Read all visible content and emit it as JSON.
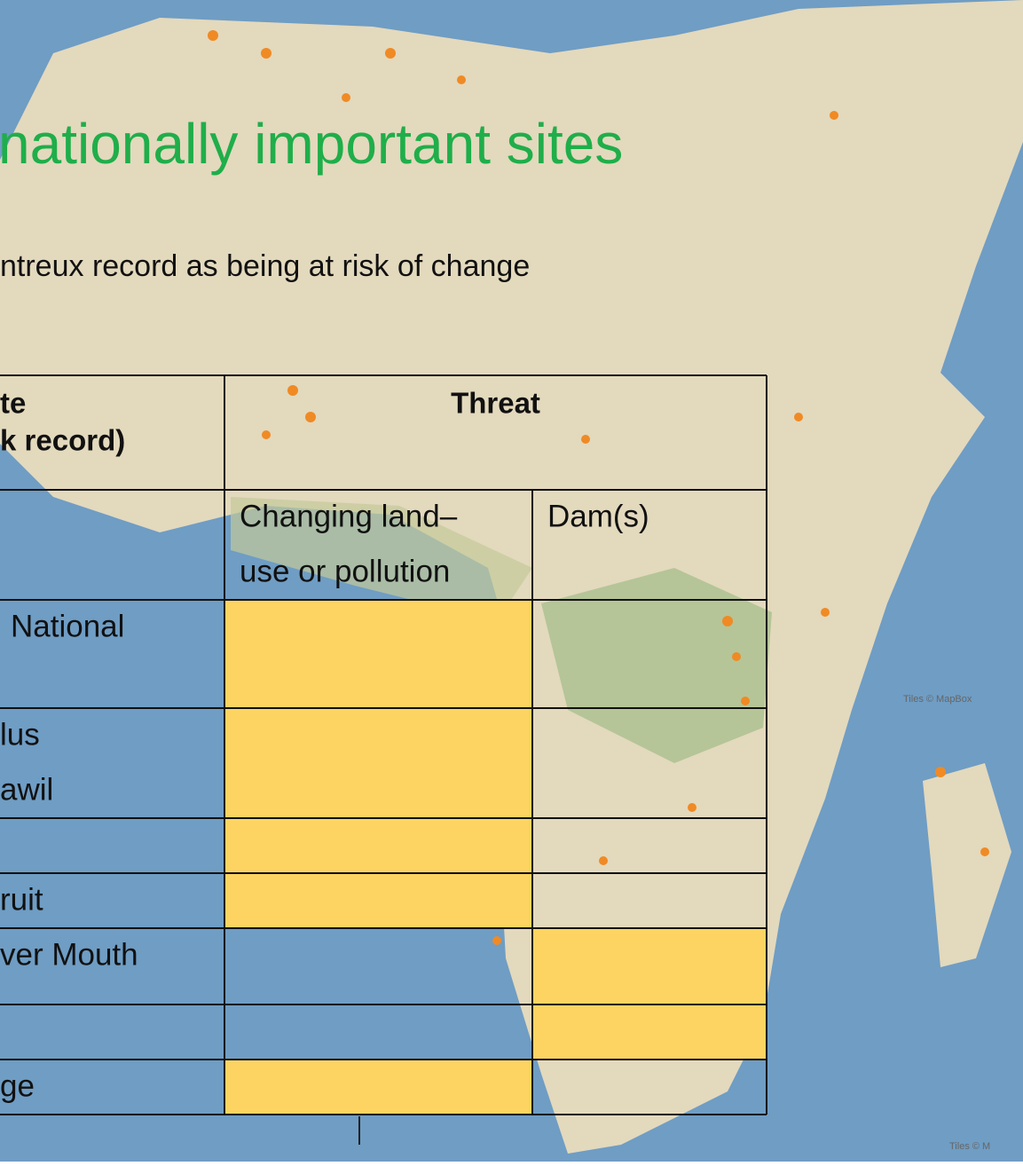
{
  "title": "nationally important sites",
  "subtitle": "ntreux record as being at risk of change",
  "table": {
    "header": {
      "site": [
        "te",
        "k record)"
      ],
      "threat": "Threat",
      "columns": [
        {
          "lines": [
            "Changing land–",
            "use or pollution"
          ]
        },
        {
          "lines": [
            "Dam(s)"
          ]
        }
      ]
    },
    "highlight_color": "#fdd462",
    "rows": [
      {
        "site": [
          "National"
        ],
        "threats": [
          true,
          false
        ]
      },
      {
        "site": [
          "lus",
          "awil"
        ],
        "threats": [
          true,
          false
        ]
      },
      {
        "threats": [
          true,
          false
        ]
      },
      {
        "site": [
          "ruit"
        ],
        "threats": [
          true,
          false
        ]
      },
      {
        "site": [
          "ver Mouth"
        ],
        "threats": [
          false,
          true
        ]
      },
      {
        "threats": [
          false,
          true
        ]
      },
      {
        "site": [
          "ge"
        ],
        "threats": [
          true,
          false
        ]
      }
    ]
  },
  "attribution": [
    "Tiles © MapBox",
    "Tiles © M"
  ]
}
